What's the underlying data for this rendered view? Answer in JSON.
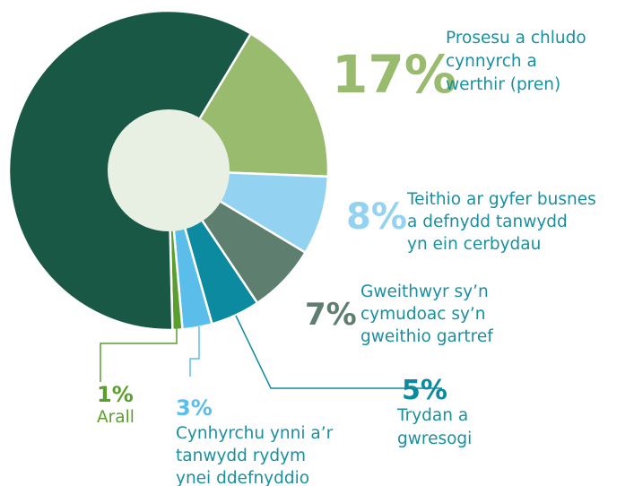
{
  "chart_data": {
    "type": "donut",
    "categories": [
      [
        "Prosesu a chludo",
        "cynnyrch a",
        "werthir (pren)"
      ],
      [
        "Teithio ar gyfer busnes",
        "a defnydd tanwydd",
        "yn ein cerbydau"
      ],
      [
        "Gweithwyr sy’n",
        "cymudoac sy’n",
        "gweithio gartref"
      ],
      [
        "Trydan a",
        "gwresogi"
      ],
      [
        "Cynhyrchu ynni a’r",
        "tanwydd rydym",
        "ynei ddefnyddio"
      ],
      [
        "Arall"
      ],
      null
    ],
    "values": [
      17,
      8,
      7,
      5,
      3,
      1,
      59
    ],
    "value_labels": [
      "17%",
      "8%",
      "7%",
      "5%",
      "3%",
      "1%",
      null
    ],
    "colors": [
      "#98bb6e",
      "#94d2f2",
      "#5e7e6f",
      "#0c8ba0",
      "#5bbdea",
      "#5a9e2e",
      "#1a5846"
    ]
  }
}
